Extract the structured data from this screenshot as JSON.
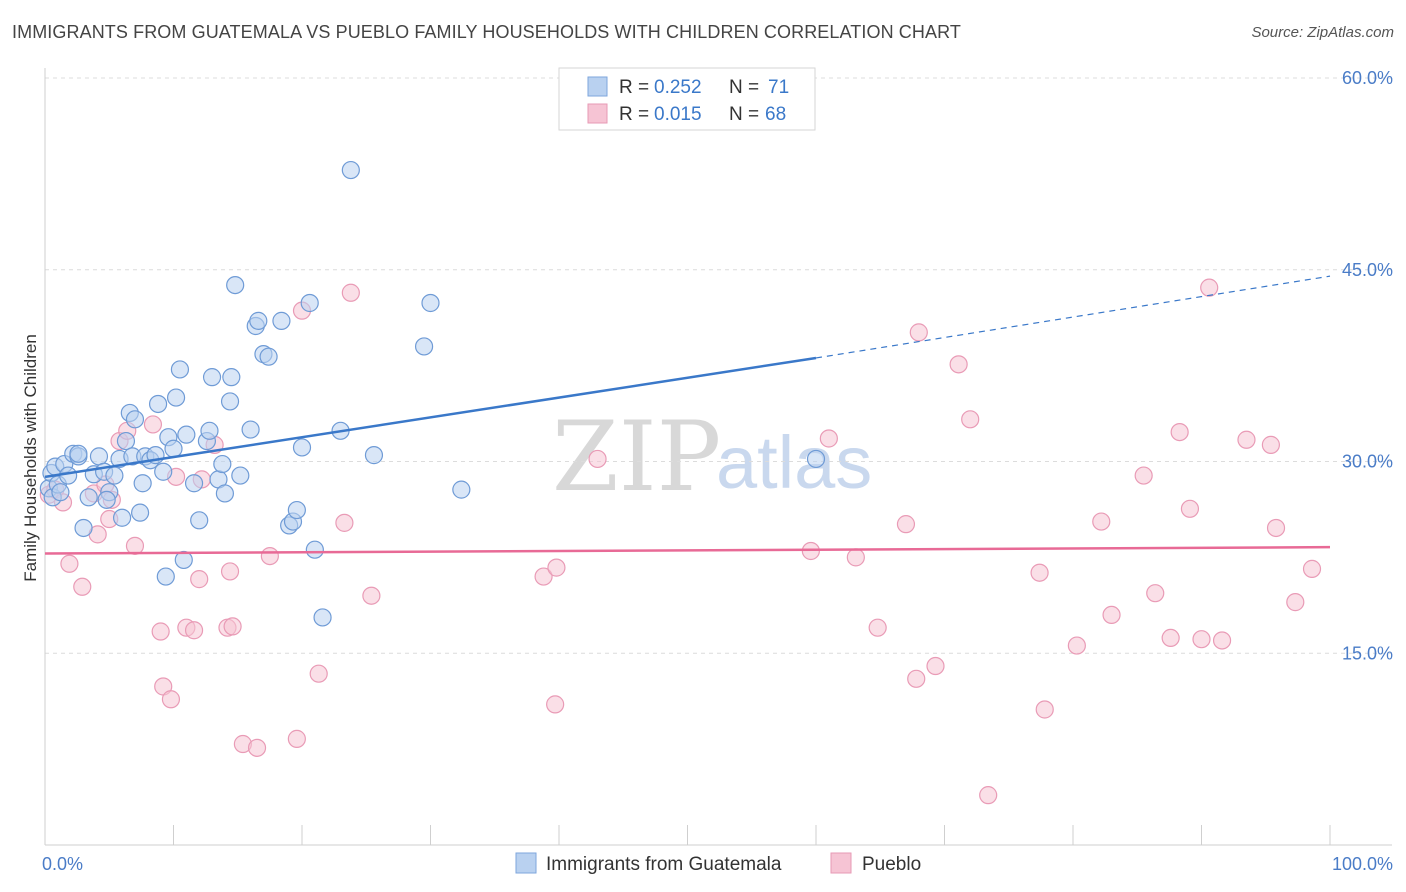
{
  "title": "IMMIGRANTS FROM GUATEMALA VS PUEBLO FAMILY HOUSEHOLDS WITH CHILDREN CORRELATION CHART",
  "source": "Source: ZipAtlas.com",
  "watermark": {
    "zip": "ZIP",
    "atlas": "atlas"
  },
  "colors": {
    "blue": "#3a78c9",
    "blue_fill": "#b9d1f0",
    "pink": "#e86a96",
    "pink_fill": "#f6c4d4",
    "axis_text": "#4a7cc7"
  },
  "legend": {
    "rows": [
      {
        "r_label": "R =",
        "r_value": "0.252",
        "n_label": "N =",
        "n_value": "71"
      },
      {
        "r_label": "R =",
        "r_value": "0.015",
        "n_label": "N =",
        "n_value": "68"
      }
    ]
  },
  "bottom_legend": {
    "series1": "Immigrants from Guatemala",
    "series2": "Pueblo"
  },
  "chart_data": {
    "type": "scatter",
    "title": "IMMIGRANTS FROM GUATEMALA VS PUEBLO FAMILY HOUSEHOLDS WITH CHILDREN CORRELATION CHART",
    "xlabel": "",
    "ylabel": "Family Households with Children",
    "xlim": [
      0,
      100
    ],
    "ylim": [
      0,
      60
    ],
    "x_tick_labels": [
      "0.0%",
      "100.0%"
    ],
    "y_ticks": [
      15,
      30,
      45,
      60
    ],
    "y_tick_labels": [
      "15.0%",
      "30.0%",
      "45.0%",
      "60.0%"
    ],
    "grid": true,
    "series": [
      {
        "name": "Immigrants from Guatemala",
        "color": "#3a78c9",
        "trend": {
          "x0": 0,
          "y0": 28.8,
          "x1": 60,
          "y1": 38.1,
          "dashed_to_x": 100,
          "dashed_to_y": 44.5
        },
        "points": [
          [
            0.3,
            27.9
          ],
          [
            0.5,
            29.1
          ],
          [
            0.6,
            27.2
          ],
          [
            0.8,
            29.6
          ],
          [
            1.0,
            28.2
          ],
          [
            1.2,
            27.6
          ],
          [
            1.5,
            29.8
          ],
          [
            1.8,
            28.9
          ],
          [
            2.2,
            30.6
          ],
          [
            2.6,
            30.4
          ],
          [
            3.0,
            24.8
          ],
          [
            3.4,
            27.2
          ],
          [
            3.8,
            29.0
          ],
          [
            4.2,
            30.4
          ],
          [
            4.6,
            29.2
          ],
          [
            5.0,
            27.6
          ],
          [
            5.4,
            28.9
          ],
          [
            5.8,
            30.2
          ],
          [
            6.0,
            25.6
          ],
          [
            6.3,
            31.6
          ],
          [
            6.6,
            33.8
          ],
          [
            6.8,
            30.4
          ],
          [
            7.0,
            33.3
          ],
          [
            7.4,
            26.0
          ],
          [
            7.6,
            28.3
          ],
          [
            7.8,
            30.4
          ],
          [
            8.2,
            30.1
          ],
          [
            8.6,
            30.5
          ],
          [
            8.8,
            34.5
          ],
          [
            9.2,
            29.2
          ],
          [
            9.4,
            21.0
          ],
          [
            9.6,
            31.9
          ],
          [
            10.0,
            31.0
          ],
          [
            10.2,
            35.0
          ],
          [
            10.5,
            37.2
          ],
          [
            10.8,
            22.3
          ],
          [
            11.0,
            32.1
          ],
          [
            11.6,
            28.3
          ],
          [
            12.0,
            25.4
          ],
          [
            12.6,
            31.6
          ],
          [
            12.8,
            32.4
          ],
          [
            13.0,
            36.6
          ],
          [
            13.5,
            28.6
          ],
          [
            13.8,
            29.8
          ],
          [
            14.0,
            27.5
          ],
          [
            14.4,
            34.7
          ],
          [
            14.5,
            36.6
          ],
          [
            14.8,
            43.8
          ],
          [
            15.2,
            28.9
          ],
          [
            16.0,
            32.5
          ],
          [
            16.4,
            40.6
          ],
          [
            16.6,
            41.0
          ],
          [
            17.0,
            38.4
          ],
          [
            17.4,
            38.2
          ],
          [
            18.4,
            41.0
          ],
          [
            19.0,
            25.0
          ],
          [
            19.3,
            25.3
          ],
          [
            19.6,
            26.2
          ],
          [
            20.0,
            31.1
          ],
          [
            20.6,
            42.4
          ],
          [
            21.0,
            23.1
          ],
          [
            21.6,
            17.8
          ],
          [
            23.0,
            32.4
          ],
          [
            23.8,
            52.8
          ],
          [
            25.6,
            30.5
          ],
          [
            29.5,
            39.0
          ],
          [
            30.0,
            42.4
          ],
          [
            32.4,
            27.8
          ],
          [
            60.0,
            30.2
          ],
          [
            2.6,
            30.6
          ],
          [
            4.8,
            27.0
          ]
        ]
      },
      {
        "name": "Pueblo",
        "color": "#e86a96",
        "trend": {
          "x0": 0,
          "y0": 22.8,
          "x1": 100,
          "y1": 23.3
        },
        "points": [
          [
            0.3,
            27.4
          ],
          [
            0.8,
            27.8
          ],
          [
            1.4,
            26.8
          ],
          [
            1.9,
            22.0
          ],
          [
            2.9,
            20.2
          ],
          [
            3.8,
            27.5
          ],
          [
            4.1,
            24.3
          ],
          [
            4.7,
            28.2
          ],
          [
            5.0,
            25.5
          ],
          [
            5.2,
            27.0
          ],
          [
            5.8,
            31.6
          ],
          [
            6.4,
            32.4
          ],
          [
            7.0,
            23.4
          ],
          [
            8.4,
            32.9
          ],
          [
            9.0,
            16.7
          ],
          [
            9.2,
            12.4
          ],
          [
            9.8,
            11.4
          ],
          [
            10.2,
            28.8
          ],
          [
            11.0,
            17.0
          ],
          [
            11.6,
            16.8
          ],
          [
            12.0,
            20.8
          ],
          [
            12.2,
            28.6
          ],
          [
            13.2,
            31.3
          ],
          [
            14.2,
            17.0
          ],
          [
            14.4,
            21.4
          ],
          [
            14.6,
            17.1
          ],
          [
            15.4,
            7.9
          ],
          [
            16.5,
            7.6
          ],
          [
            17.5,
            22.6
          ],
          [
            19.6,
            8.3
          ],
          [
            20.0,
            41.8
          ],
          [
            21.3,
            13.4
          ],
          [
            23.3,
            25.2
          ],
          [
            23.8,
            43.2
          ],
          [
            25.4,
            19.5
          ],
          [
            43.0,
            30.2
          ],
          [
            38.8,
            21.0
          ],
          [
            39.7,
            11.0
          ],
          [
            39.8,
            21.7
          ],
          [
            59.6,
            23.0
          ],
          [
            61.0,
            31.8
          ],
          [
            63.1,
            22.5
          ],
          [
            64.8,
            17.0
          ],
          [
            67.0,
            25.1
          ],
          [
            67.8,
            13.0
          ],
          [
            68.0,
            40.1
          ],
          [
            69.3,
            14.0
          ],
          [
            71.1,
            37.6
          ],
          [
            72.0,
            33.3
          ],
          [
            73.4,
            3.9
          ],
          [
            77.4,
            21.3
          ],
          [
            77.8,
            10.6
          ],
          [
            80.3,
            15.6
          ],
          [
            82.2,
            25.3
          ],
          [
            83.0,
            18.0
          ],
          [
            85.5,
            28.9
          ],
          [
            86.4,
            19.7
          ],
          [
            87.6,
            16.2
          ],
          [
            88.3,
            32.3
          ],
          [
            89.1,
            26.3
          ],
          [
            90.0,
            16.1
          ],
          [
            90.6,
            43.6
          ],
          [
            91.6,
            16.0
          ],
          [
            93.5,
            31.7
          ],
          [
            95.4,
            31.3
          ],
          [
            95.8,
            24.8
          ],
          [
            97.3,
            19.0
          ],
          [
            98.6,
            21.6
          ]
        ]
      }
    ]
  }
}
